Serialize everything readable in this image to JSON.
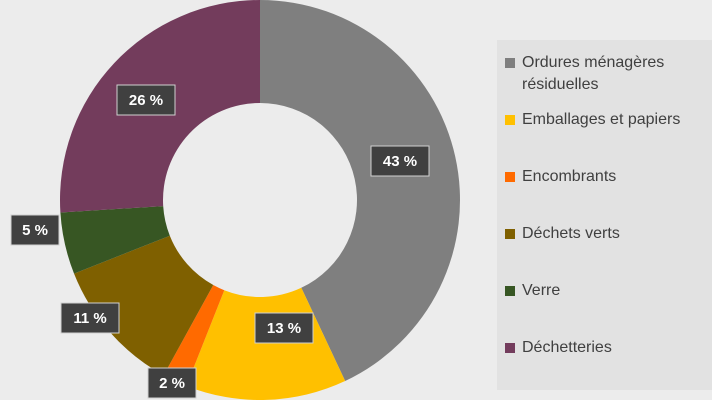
{
  "chart_data": {
    "type": "donut",
    "categories": [
      "Ordures ménagères résiduelles",
      "Emballages et papiers",
      "Encombrants",
      "Déchets verts",
      "Verre",
      "Déchetteries"
    ],
    "values": [
      43,
      13,
      2,
      11,
      5,
      26
    ],
    "value_labels": [
      "43 %",
      "13 %",
      "2 %",
      "11 %",
      "5 %",
      "26 %"
    ],
    "colors": [
      "#7f7f7f",
      "#ffc000",
      "#ff6a00",
      "#7f6000",
      "#375623",
      "#733c5c"
    ],
    "legend": "right"
  }
}
